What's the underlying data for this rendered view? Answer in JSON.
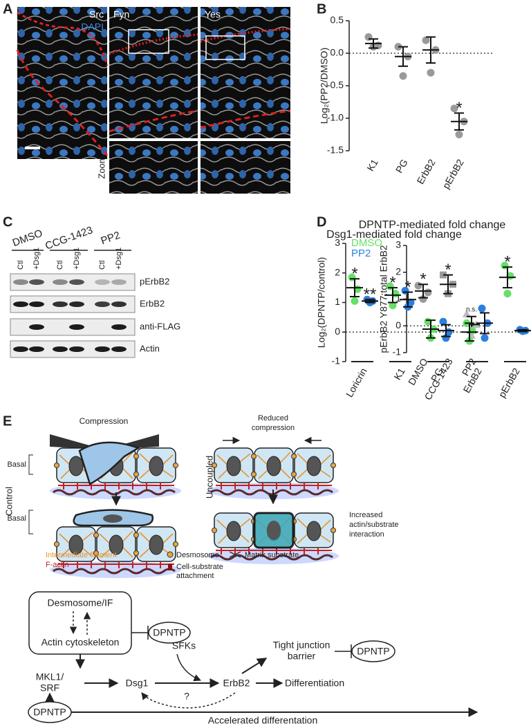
{
  "chart_data": [
    {
      "type": "dot",
      "y_label": "Log₂(PP2/DMSO)",
      "categories": [
        "K1",
        "PG",
        "ErbB2",
        "pErbB2"
      ],
      "ylim": [
        -1.5,
        0.5
      ],
      "yticks": [
        0.5,
        {
          "value": 0,
          "label": "0.0"
        },
        -0.5,
        {
          "value": -1,
          "label": "-1.0"
        },
        -1.5
      ],
      "reference_line": 0,
      "series": [
        {
          "color": "#9a9a9a",
          "marker": "circle",
          "points": [
            [
              0.25,
              0.12,
              0.1
            ],
            [
              0.1,
              -0.05,
              -0.35
            ],
            [
              0.2,
              0.05,
              -0.3
            ],
            [
              -0.85,
              -1.05,
              -1.25
            ]
          ],
          "means": [
            0.15,
            -0.05,
            0.05,
            -1.05
          ],
          "errors": [
            0.07,
            0.15,
            0.2,
            0.13
          ],
          "annotations": [
            null,
            null,
            null,
            "*"
          ]
        }
      ]
    },
    {
      "type": "dot",
      "title": "Dsg1-mediated fold change",
      "y_label": "pErbB2 Y877:total ErbB2",
      "categories": [
        "DMSO",
        "CCG-1423",
        "PP2"
      ],
      "ylim": [
        -1,
        3
      ],
      "yticks": [
        -1,
        0,
        1,
        2,
        3
      ],
      "reference_line": 0,
      "series": [
        {
          "color": "#9a9a9a",
          "markers": [
            "circle",
            "square",
            "triangle"
          ],
          "points": [
            [
              1.5,
              1.25,
              1.0
            ],
            [
              1.9,
              1.55,
              1.2
            ],
            [
              0.45,
              0.05,
              -0.35
            ]
          ],
          "means": [
            1.3,
            1.55,
            0.05
          ],
          "errors": [
            0.25,
            0.35,
            0.3
          ],
          "annotations": [
            "*",
            "*",
            "n.s."
          ]
        }
      ]
    },
    {
      "type": "dot",
      "title": "DPNTP-mediated fold change",
      "y_label": "Log₂(DPNTP/control)",
      "categories": [
        "Loricrin",
        "K1",
        "PG",
        "ErbB2",
        "pErbB2"
      ],
      "ylim": [
        -1,
        3
      ],
      "yticks": [
        -1,
        0,
        1,
        2,
        3
      ],
      "reference_line": 0,
      "legend": "top-left",
      "series": [
        {
          "name": "DMSO",
          "color": "#66e066",
          "marker": "circle",
          "points": [
            [
              1.85,
              1.45,
              1.05
            ],
            [
              1.55,
              1.3,
              0.9
            ],
            [
              0.35,
              0.1,
              -0.2
            ],
            [
              0.3,
              0.05,
              -0.3
            ],
            [
              2.25,
              1.9,
              1.3
            ]
          ],
          "means": [
            1.5,
            1.25,
            0.1,
            0.0,
            1.85
          ],
          "errors": [
            0.3,
            0.25,
            0.3,
            0.3,
            0.35
          ],
          "annotations": [
            "*",
            "*",
            null,
            null,
            "*"
          ]
        },
        {
          "name": "PP2",
          "color": "#2b7fe0",
          "marker": "circle",
          "points": [
            [
              1.1,
              1.05,
              1.0
            ],
            [
              1.4,
              1.0,
              0.85
            ],
            [
              0.35,
              0.0,
              -0.2
            ],
            [
              0.8,
              0.3,
              -0.2
            ],
            [
              0.08,
              0.05,
              0.03
            ]
          ],
          "means": [
            1.05,
            1.1,
            0.05,
            0.3,
            0.05
          ],
          "errors": [
            0.05,
            0.25,
            0.2,
            0.35,
            0.03
          ],
          "annotations": [
            "**",
            "*",
            null,
            null,
            null
          ]
        }
      ]
    }
  ],
  "panel_labels": [
    "A",
    "B",
    "C",
    "D",
    "E"
  ],
  "panel_a": {
    "channels": [
      "Src",
      "Fyn",
      "Yes"
    ],
    "stain": "DAPI",
    "row_label": "Zoom"
  },
  "blot": {
    "groups": [
      "DMSO",
      "CCG-1423",
      "PP2"
    ],
    "lanes": [
      "Ctl",
      "+Dsg1"
    ],
    "rows": [
      "pErbB2",
      "ErbB2",
      "anti-FLAG",
      "Actin"
    ]
  },
  "schematic": {
    "compression": "Compression",
    "basal": "Basal",
    "control": "Control",
    "reduced": [
      "Reduced",
      "compression"
    ],
    "uncoupled": "Uncoupled",
    "increased": [
      "Increased",
      "actin/substrate",
      "interaction"
    ],
    "legend": {
      "filament": "Intermediate filament",
      "actin": "F-actin",
      "desmosome": "Desmosome",
      "attachment": [
        "Cell-substrate",
        "attachment"
      ],
      "matrix": "Matrix substrate"
    }
  },
  "pathway": {
    "desmosome_if": "Desmosome/IF",
    "actin": "Actin cytoskeleton",
    "dpntp": "DPNTP",
    "mkl1": [
      "MKL1/",
      "SRF"
    ],
    "dsg1": "Dsg1",
    "sfks": "SFKs",
    "erbb2": "ErbB2",
    "tj": [
      "Tight junction",
      "barrier"
    ],
    "differentiation": "Differentiation",
    "question": "?",
    "accelerated": "Accelerated differentation"
  }
}
